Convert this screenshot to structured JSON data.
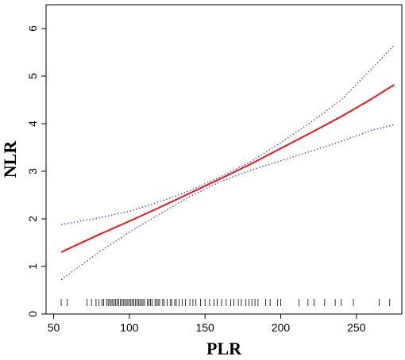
{
  "chart_data": {
    "type": "line",
    "xlabel": "PLR",
    "ylabel": "NLR",
    "xlim": [
      45,
      280
    ],
    "ylim": [
      0,
      6.5
    ],
    "x_ticks": [
      50,
      100,
      150,
      200,
      250
    ],
    "y_ticks": [
      0,
      1,
      2,
      3,
      4,
      5,
      6
    ],
    "grid": false,
    "series": [
      {
        "role": "estimate",
        "style": "solid",
        "color": "#e8141c",
        "x": [
          55,
          80,
          100,
          120,
          140,
          160,
          180,
          200,
          220,
          240,
          260,
          275
        ],
        "y": [
          1.3,
          1.67,
          1.95,
          2.24,
          2.54,
          2.84,
          3.15,
          3.48,
          3.81,
          4.15,
          4.52,
          4.82
        ]
      },
      {
        "role": "upper-confidence-limit",
        "style": "dotted",
        "color": "#3b3bdc",
        "x": [
          55,
          80,
          100,
          120,
          140,
          160,
          180,
          200,
          220,
          240,
          260,
          275
        ],
        "y": [
          1.88,
          2.02,
          2.16,
          2.36,
          2.59,
          2.88,
          3.2,
          3.6,
          4.03,
          4.5,
          5.15,
          5.65
        ]
      },
      {
        "role": "lower-confidence-limit",
        "style": "dotted",
        "color": "#3b3bdc",
        "x": [
          55,
          80,
          100,
          120,
          140,
          160,
          180,
          200,
          220,
          240,
          260,
          275
        ],
        "y": [
          0.72,
          1.3,
          1.72,
          2.1,
          2.47,
          2.78,
          3.02,
          3.22,
          3.42,
          3.63,
          3.86,
          3.98
        ]
      }
    ],
    "rug": [
      55,
      59,
      72,
      75,
      78,
      80,
      82,
      83,
      85,
      86,
      87,
      88,
      89,
      90,
      91,
      92,
      93,
      94,
      95,
      96,
      97,
      98,
      99,
      100,
      101,
      102,
      103,
      104,
      105,
      106,
      107,
      108,
      109,
      110,
      112,
      113,
      114,
      115,
      117,
      118,
      119,
      120,
      122,
      123,
      125,
      127,
      128,
      130,
      131,
      133,
      135,
      137,
      140,
      142,
      144,
      147,
      150,
      153,
      156,
      158,
      161,
      164,
      167,
      169,
      172,
      174,
      177,
      179,
      181,
      183,
      185,
      190,
      193,
      198,
      200,
      212,
      218,
      222,
      229,
      236,
      240,
      248,
      265,
      272
    ]
  }
}
